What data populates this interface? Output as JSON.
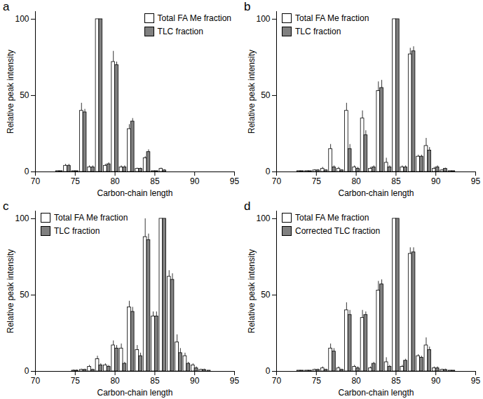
{
  "chart_data": [
    {
      "type": "bar",
      "title": "a",
      "xlabel": "Carbon-chain length",
      "ylabel": "Relative peak intensity",
      "x": [
        72,
        73,
        74,
        75,
        76,
        77,
        78,
        79,
        80,
        81,
        82,
        83,
        84,
        85,
        86,
        87,
        88,
        89,
        90,
        91,
        92
      ],
      "series": [
        {
          "name": "Total FA Me fraction",
          "color": "#ffffff",
          "values": [
            0,
            0.5,
            4,
            0.5,
            40,
            3,
            100,
            4,
            72,
            3,
            28,
            2,
            9,
            0.5,
            2,
            0,
            0,
            0,
            0,
            0,
            0
          ],
          "errors": [
            0,
            0,
            1,
            0,
            5,
            1,
            0,
            1,
            7,
            1,
            3,
            0.5,
            1,
            0,
            0.5,
            0,
            0,
            0,
            0,
            0,
            0
          ]
        },
        {
          "name": "TLC fraction",
          "color": "#808080",
          "values": [
            0,
            0.5,
            4,
            0.5,
            39,
            3,
            100,
            5,
            70,
            3,
            33,
            2,
            13,
            0.5,
            1,
            0,
            0,
            0,
            0,
            0,
            0
          ],
          "errors": [
            0,
            0,
            1,
            0,
            2,
            1,
            0,
            1,
            2,
            1,
            2,
            0.5,
            1.5,
            0,
            0.5,
            0,
            0,
            0,
            0,
            0,
            0
          ]
        }
      ],
      "xlim": [
        70,
        95
      ],
      "xticks": [
        70,
        75,
        80,
        85,
        90,
        95
      ],
      "ylim": [
        0,
        105
      ],
      "yticks": [
        0,
        50,
        100
      ],
      "legend": "upper right"
    },
    {
      "type": "bar",
      "title": "b",
      "xlabel": "Carbon-chain length",
      "ylabel": "Relative peak intensity",
      "x": [
        72,
        73,
        74,
        75,
        76,
        77,
        78,
        79,
        80,
        81,
        82,
        83,
        84,
        85,
        86,
        87,
        88,
        89,
        90,
        91,
        92
      ],
      "series": [
        {
          "name": "Total FA Me fraction",
          "color": "#ffffff",
          "values": [
            0,
            0.5,
            0.5,
            1,
            2,
            15,
            2,
            40,
            3,
            35,
            2,
            53,
            6,
            100,
            3,
            77,
            10,
            17,
            2,
            1,
            0.5
          ],
          "errors": [
            0,
            0,
            0,
            0.5,
            1,
            3,
            1,
            5,
            1,
            5,
            1,
            6,
            3,
            0,
            1,
            4,
            1,
            5,
            1,
            0.5,
            0
          ]
        },
        {
          "name": "TLC fraction",
          "color": "#808080",
          "values": [
            0,
            0.5,
            0.5,
            1,
            1,
            3,
            1,
            15,
            2,
            24,
            3,
            55,
            3,
            100,
            3,
            79,
            10,
            14,
            3,
            2,
            0.5
          ],
          "errors": [
            0,
            0,
            0,
            0.5,
            0.5,
            1,
            0.5,
            3,
            1,
            3,
            1,
            5,
            1,
            0,
            1,
            3,
            1,
            2,
            1,
            0.5,
            0
          ]
        }
      ],
      "xlim": [
        70,
        95
      ],
      "xticks": [
        70,
        75,
        80,
        85,
        90,
        95
      ],
      "ylim": [
        0,
        105
      ],
      "yticks": [
        0,
        50,
        100
      ],
      "legend": "upper left"
    },
    {
      "type": "bar",
      "title": "c",
      "xlabel": "Carbon-chain length",
      "ylabel": "Relative peak intensity",
      "x": [
        72,
        73,
        74,
        75,
        76,
        77,
        78,
        79,
        80,
        81,
        82,
        83,
        84,
        85,
        86,
        87,
        88,
        89,
        90,
        91,
        92
      ],
      "series": [
        {
          "name": "Total FA Me fraction",
          "color": "#ffffff",
          "values": [
            0,
            0,
            0,
            0.5,
            1,
            3,
            8,
            4,
            17,
            15,
            42,
            14,
            88,
            36,
            100,
            62,
            19,
            10,
            4,
            1,
            0.5
          ],
          "errors": [
            0,
            0,
            0,
            0.5,
            0.5,
            1,
            2,
            1,
            3,
            3,
            4,
            3,
            12,
            3,
            0,
            4,
            5,
            2,
            1,
            0.5,
            0
          ]
        },
        {
          "name": "TLC fraction",
          "color": "#808080",
          "values": [
            0,
            0,
            0,
            0.5,
            1,
            1,
            4,
            3,
            15,
            5,
            39,
            10,
            86,
            36,
            100,
            60,
            12,
            5,
            2,
            1,
            0
          ],
          "errors": [
            0,
            0,
            0,
            0.5,
            0.5,
            0.5,
            1,
            1,
            2,
            1,
            3,
            2,
            4,
            3,
            0,
            4,
            3,
            1,
            1,
            0.5,
            0
          ]
        }
      ],
      "xlim": [
        70,
        95
      ],
      "xticks": [
        70,
        75,
        80,
        85,
        90,
        95
      ],
      "ylim": [
        0,
        105
      ],
      "yticks": [
        0,
        50,
        100
      ],
      "legend": "upper left"
    },
    {
      "type": "bar",
      "title": "d",
      "xlabel": "Carbon-chain length",
      "ylabel": "Relative peak intensity",
      "x": [
        72,
        73,
        74,
        75,
        76,
        77,
        78,
        79,
        80,
        81,
        82,
        83,
        84,
        85,
        86,
        87,
        88,
        89,
        90,
        91,
        92
      ],
      "series": [
        {
          "name": "Total FA Me fraction",
          "color": "#ffffff",
          "values": [
            0,
            0.5,
            0.5,
            1,
            2,
            15,
            2,
            40,
            3,
            35,
            2,
            53,
            6,
            100,
            3,
            77,
            10,
            17,
            2,
            1,
            0.5
          ],
          "errors": [
            0,
            0,
            0,
            0.5,
            1,
            3,
            1,
            5,
            1,
            5,
            1,
            6,
            3,
            0,
            1,
            4,
            1,
            5,
            1,
            0.5,
            0
          ]
        },
        {
          "name": "Corrected TLC fraction",
          "color": "#808080",
          "values": [
            0,
            0.5,
            0.5,
            1,
            1,
            13,
            1,
            37,
            2,
            37,
            5,
            57,
            3,
            100,
            7,
            78,
            9,
            14,
            2,
            1,
            0.5
          ],
          "errors": [
            0,
            0,
            0,
            0.5,
            0.5,
            2,
            0.5,
            3,
            1,
            2,
            1,
            3,
            1,
            0,
            1,
            3,
            1,
            2,
            1,
            0.5,
            0
          ]
        }
      ],
      "xlim": [
        70,
        95
      ],
      "xticks": [
        70,
        75,
        80,
        85,
        90,
        95
      ],
      "ylim": [
        0,
        105
      ],
      "yticks": [
        0,
        50,
        100
      ],
      "legend": "upper left"
    }
  ]
}
